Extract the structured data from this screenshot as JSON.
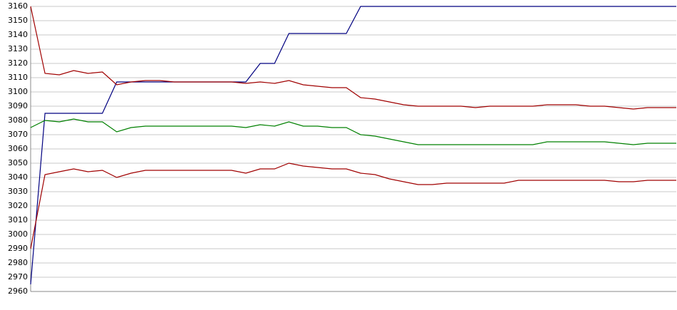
{
  "chart_data": {
    "type": "line",
    "categories": [
      null,
      null,
      null,
      null,
      null,
      null,
      null,
      null,
      null,
      null,
      null,
      null,
      null,
      null,
      null,
      null,
      null,
      null,
      null,
      null,
      null,
      null,
      null,
      null,
      null,
      null,
      null,
      null,
      null,
      null,
      null,
      null,
      null,
      null,
      null,
      null,
      null,
      null,
      null,
      null,
      null,
      null,
      null,
      null,
      null,
      null
    ],
    "series": [
      {
        "color": "#000080",
        "values": [
          2965,
          3085,
          3085,
          3085,
          3085,
          3085,
          3107,
          3107,
          3107,
          3107,
          3107,
          3107,
          3107,
          3107,
          3107,
          3107,
          3120,
          3120,
          3141,
          3141,
          3141,
          3141,
          3141,
          3160,
          3160,
          3160,
          3160,
          3160,
          3160,
          3160,
          3160,
          3160,
          3160,
          3160,
          3160,
          3160,
          3160,
          3160,
          3160,
          3160,
          3160,
          3160,
          3160,
          3160,
          3160,
          3160
        ]
      },
      {
        "color": "#a00000",
        "values": [
          3160,
          3113,
          3112,
          3115,
          3113,
          3114,
          3105,
          3107,
          3108,
          3108,
          3107,
          3107,
          3107,
          3107,
          3107,
          3106,
          3107,
          3106,
          3108,
          3105,
          3104,
          3103,
          3103,
          3096,
          3095,
          3093,
          3091,
          3090,
          3090,
          3090,
          3090,
          3089,
          3090,
          3090,
          3090,
          3090,
          3091,
          3091,
          3091,
          3090,
          3090,
          3089,
          3088,
          3089,
          3089,
          3089
        ]
      },
      {
        "color": "#008000",
        "values": [
          3075,
          3080,
          3079,
          3081,
          3079,
          3079,
          3072,
          3075,
          3076,
          3076,
          3076,
          3076,
          3076,
          3076,
          3076,
          3075,
          3077,
          3076,
          3079,
          3076,
          3076,
          3075,
          3075,
          3070,
          3069,
          3067,
          3065,
          3063,
          3063,
          3063,
          3063,
          3063,
          3063,
          3063,
          3063,
          3063,
          3065,
          3065,
          3065,
          3065,
          3065,
          3064,
          3063,
          3064,
          3064,
          3064
        ]
      },
      {
        "color": "#a00000",
        "values": [
          2990,
          3042,
          3044,
          3046,
          3044,
          3045,
          3040,
          3043,
          3045,
          3045,
          3045,
          3045,
          3045,
          3045,
          3045,
          3043,
          3046,
          3046,
          3050,
          3048,
          3047,
          3046,
          3046,
          3043,
          3042,
          3039,
          3037,
          3035,
          3035,
          3036,
          3036,
          3036,
          3036,
          3036,
          3038,
          3038,
          3038,
          3038,
          3038,
          3038,
          3038,
          3037,
          3037,
          3038,
          3038,
          3038
        ]
      }
    ],
    "ylim": [
      2960,
      3160
    ],
    "yticks": [
      2960,
      2970,
      2980,
      2990,
      3000,
      3010,
      3020,
      3030,
      3040,
      3050,
      3060,
      3070,
      3080,
      3090,
      3100,
      3110,
      3120,
      3130,
      3140,
      3150,
      3160
    ],
    "grid": true
  }
}
